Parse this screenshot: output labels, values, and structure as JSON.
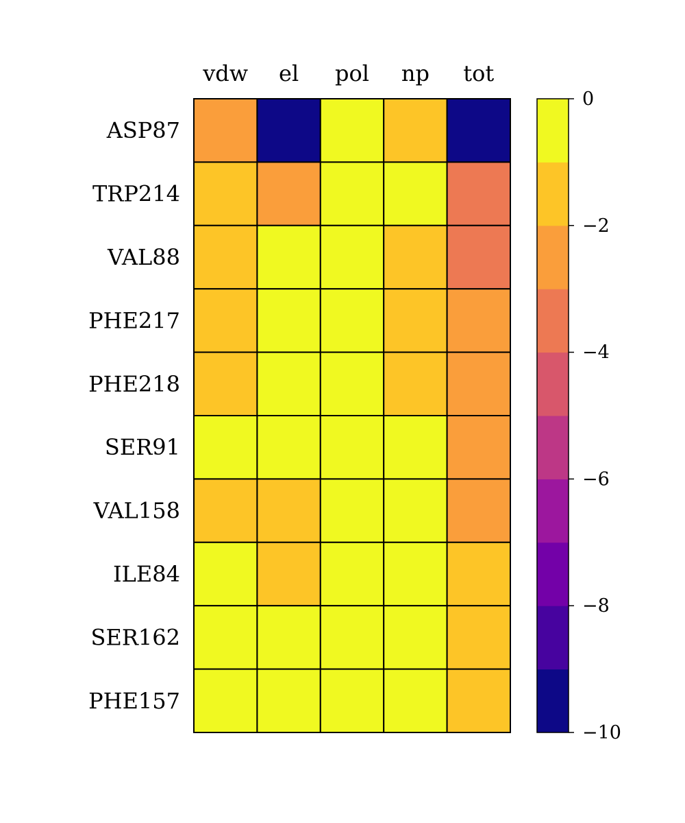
{
  "chart_data": {
    "type": "heatmap",
    "columns": [
      "vdw",
      "el",
      "pol",
      "np",
      "tot"
    ],
    "rows": [
      "ASP87",
      "TRP214",
      "VAL88",
      "PHE217",
      "PHE218",
      "SER91",
      "VAL158",
      "ILE84",
      "SER162",
      "PHE157"
    ],
    "values": [
      [
        -2.5,
        -10,
        -0.5,
        -1.5,
        -10
      ],
      [
        -1.5,
        -2.5,
        -0.5,
        -0.5,
        -3.5
      ],
      [
        -1.5,
        -0.5,
        -0.5,
        -1.5,
        -3.5
      ],
      [
        -1.5,
        -0.5,
        -0.5,
        -1.5,
        -2.5
      ],
      [
        -1.5,
        -0.5,
        -0.5,
        -1.5,
        -2.5
      ],
      [
        -0.5,
        -0.5,
        -0.5,
        -0.5,
        -2.5
      ],
      [
        -1.5,
        -1.5,
        -0.5,
        -0.5,
        -2.5
      ],
      [
        -0.5,
        -1.5,
        -0.5,
        -0.5,
        -1.5
      ],
      [
        -0.5,
        -0.5,
        -0.5,
        -0.5,
        -1.5
      ],
      [
        -0.5,
        -0.5,
        -0.5,
        -0.5,
        -1.5
      ]
    ],
    "colorbar": {
      "vmin": -10,
      "vmax": 0,
      "ticks": [
        0,
        -2,
        -4,
        -6,
        -8,
        -10
      ],
      "tick_labels": [
        "0",
        "−2",
        "−4",
        "−6",
        "−8",
        "−10"
      ],
      "bins": 10,
      "bin_colors": [
        "#0d0887",
        "#47039f",
        "#7301a8",
        "#9c179e",
        "#bd3786",
        "#d8576b",
        "#ed7953",
        "#fa9e3b",
        "#fdc527",
        "#f0f921"
      ]
    },
    "grid": true
  }
}
